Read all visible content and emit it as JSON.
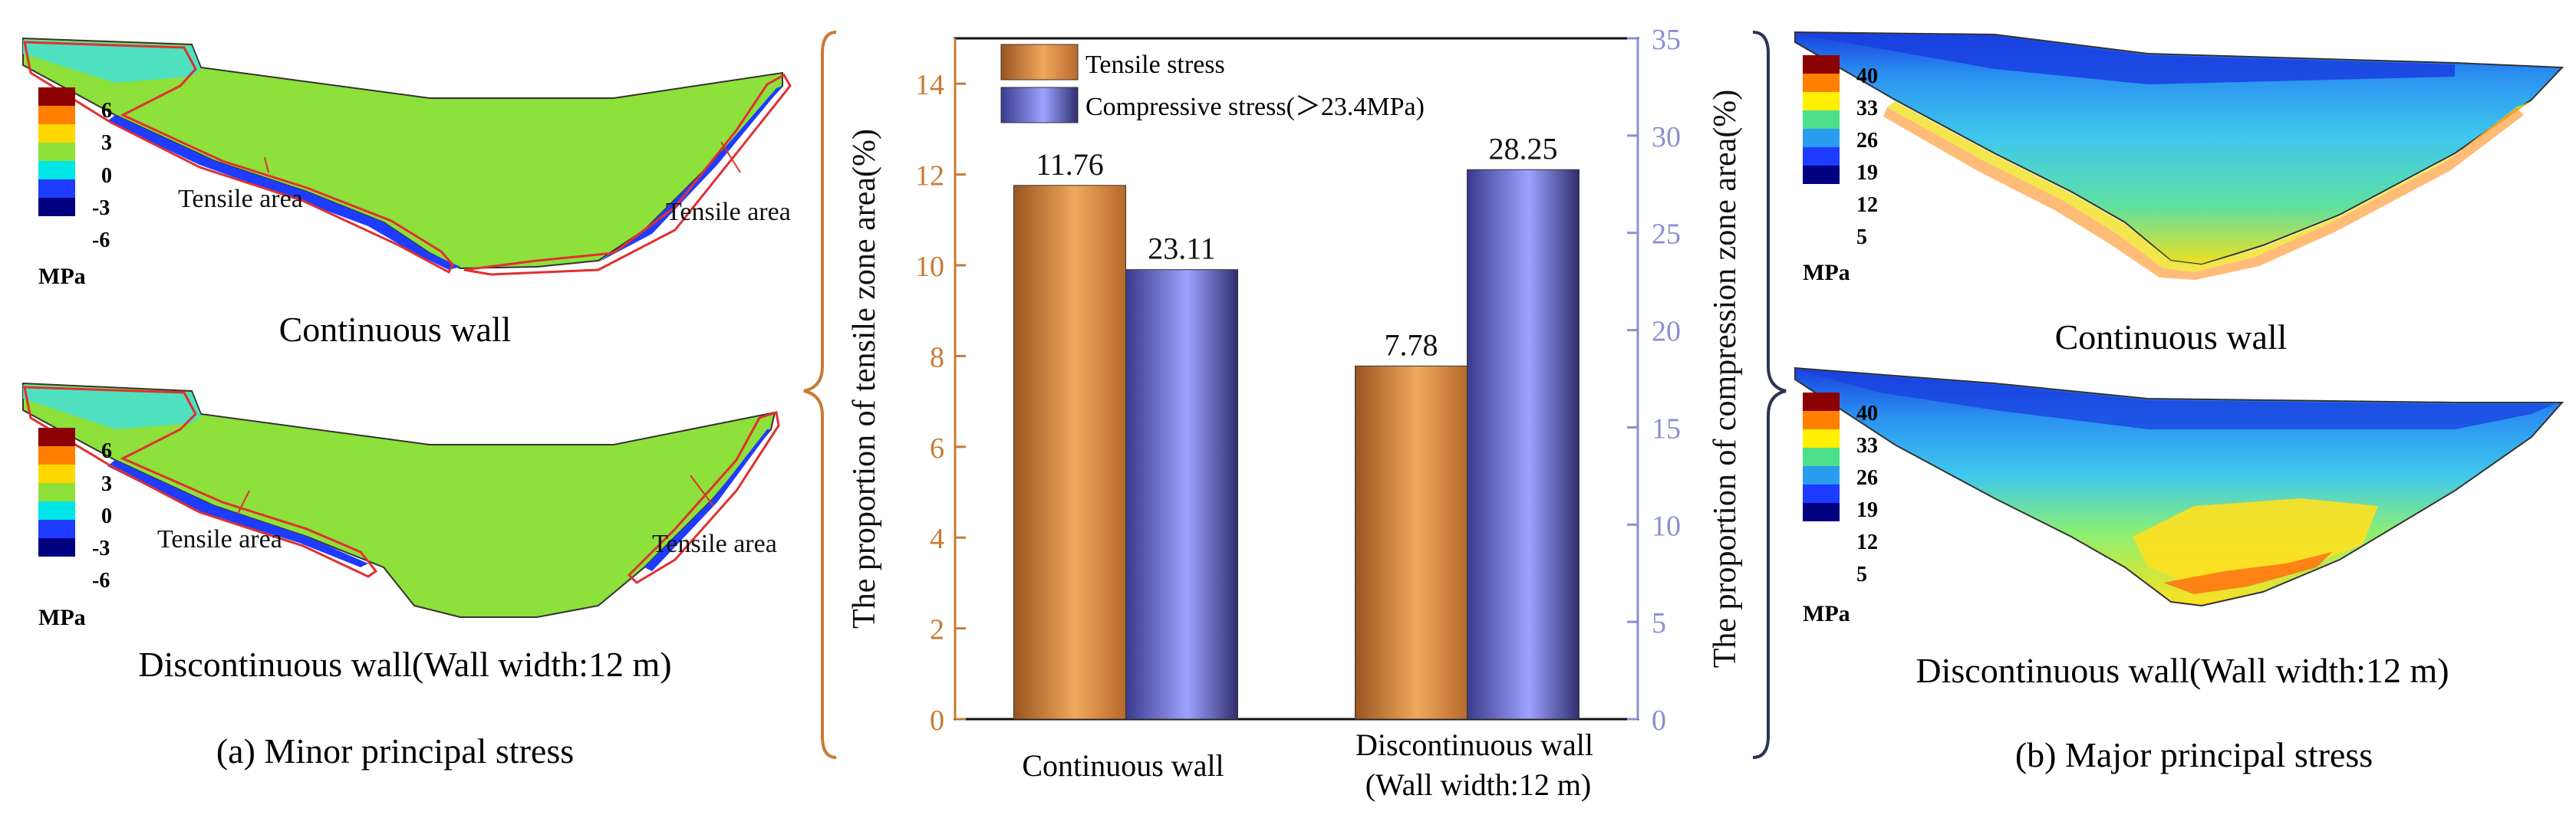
{
  "chart_data": {
    "type": "bar",
    "categories": [
      "Continuous wall",
      "Discontinuous wall\n(Wall width:12 m)"
    ],
    "series": [
      {
        "name": "Tensile stress",
        "axis": "left",
        "values": [
          11.76,
          7.78
        ],
        "color": "#d88a3c"
      },
      {
        "name": "Compressive stress(＞23.4MPa)",
        "axis": "right",
        "values": [
          23.11,
          28.25
        ],
        "color": "#8c8fe6"
      }
    ],
    "value_labels": [
      [
        "11.76",
        "7.78"
      ],
      [
        "23.11",
        "28.25"
      ]
    ],
    "y_left": {
      "label": "The proportion of tensile zone area(%)",
      "lim": [
        0,
        15
      ],
      "ticks": [
        "0",
        "2",
        "4",
        "6",
        "8",
        "10",
        "12",
        "14"
      ],
      "color": "#c87a34"
    },
    "y_right": {
      "label": "The proportion of compression zone area(%)",
      "lim": [
        0,
        35
      ],
      "ticks": [
        "0",
        "5",
        "10",
        "15",
        "20",
        "25",
        "30",
        "35"
      ],
      "color": "#8c8fd0"
    },
    "legend_position": "top-left"
  },
  "panels": {
    "minor": {
      "caption": "(a) Minor principal stress",
      "unit": "MPa",
      "scale_labels": [
        "6",
        "3",
        "0",
        "-3",
        "-6"
      ],
      "scale_colors": [
        "#8b0000",
        "#ff7f00",
        "#ffd700",
        "#8ee03a",
        "#00e5e5",
        "#1e3cff",
        "#000080"
      ],
      "top_title": "Continuous wall",
      "bottom_title": "Discontinuous wall(Wall width:12 m)",
      "annotation": "Tensile area"
    },
    "major": {
      "caption": "(b) Major principal stress",
      "unit": "MPa",
      "scale_labels": [
        "40",
        "33",
        "26",
        "19",
        "12",
        "5"
      ],
      "scale_colors": [
        "#8b0000",
        "#ff7f00",
        "#ffef00",
        "#4de08a",
        "#2a9cf0",
        "#1e3cff",
        "#000080"
      ],
      "top_title": "Continuous wall",
      "bottom_title": "Discontinuous wall(Wall width:12 m)"
    }
  },
  "colors": {
    "minor_fill": "#8ee03a",
    "major_fill": "#3fc8ee",
    "highlight_outline": "#e03030",
    "brace_left": "#c87a34",
    "brace_right": "#2e3550"
  }
}
